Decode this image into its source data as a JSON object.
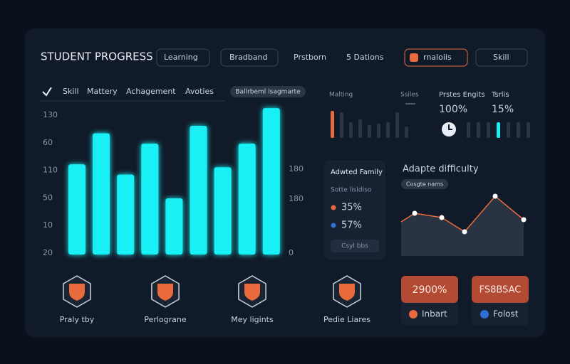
{
  "header": {
    "title": "STUDENT PROGRESS",
    "controls": [
      "Learning",
      "Bradband",
      "Prstborn",
      "5 Dations",
      "rnaloiis",
      "Skill"
    ]
  },
  "tabs": {
    "items": [
      "Skill",
      "Mattery",
      "Achagement",
      "Avoties"
    ],
    "pill": "Ballrbeml lsagmarte"
  },
  "progress_chart": {
    "type": "bar",
    "left_labels": [
      "130",
      "60",
      "110",
      "50",
      "10",
      "20"
    ],
    "right_labels": [
      "180",
      "180",
      "0"
    ],
    "values": [
      61,
      82,
      54,
      75,
      38,
      87,
      59,
      75,
      99
    ],
    "ylim": [
      0,
      100
    ],
    "color": "#19f0f5"
  },
  "badges": [
    "Praly tby",
    "Perlograne",
    "Mey ligints",
    "Pedie Liares"
  ],
  "mini": {
    "labels": [
      "Malting",
      "Ssiles"
    ],
    "bars": [
      38,
      36,
      22,
      26,
      18,
      20,
      22,
      36,
      16
    ],
    "bars_ylim": [
      0,
      40
    ],
    "stats": [
      {
        "label": "Prstes Engits",
        "value": "100%"
      },
      {
        "label": "Tsrlis",
        "value": "15%"
      }
    ],
    "bars2": [
      22,
      22,
      22,
      22,
      22,
      22,
      22
    ]
  },
  "family_card": {
    "title": "Adwted Family",
    "subtitle": "Sotte lisldiso",
    "items": [
      "35%",
      "57%"
    ],
    "button": "Csyl bbs"
  },
  "difficulty": {
    "type": "line",
    "title": "Adapte difficulty",
    "pill": "Cosgte nams",
    "values": [
      48,
      60,
      54,
      34,
      84,
      51
    ],
    "ylim": [
      0,
      100
    ]
  },
  "cards": [
    {
      "value": "2900%",
      "label": "Inbart"
    },
    {
      "value": "FS8BSAC",
      "label": "Folost"
    }
  ]
}
